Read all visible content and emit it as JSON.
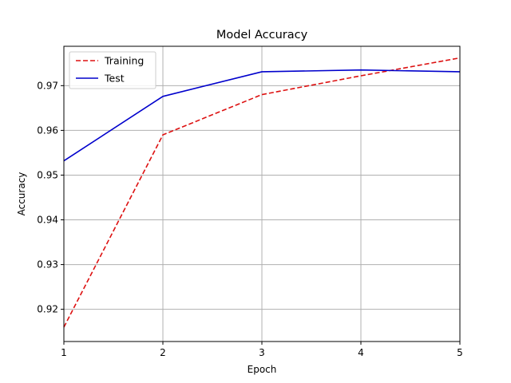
{
  "chart_data": {
    "type": "line",
    "title": "Model Accuracy",
    "xlabel": "Epoch",
    "ylabel": "Accuracy",
    "x": [
      1,
      2,
      3,
      4,
      5
    ],
    "xlim": [
      1,
      5
    ],
    "ylim": [
      0.9128,
      0.9788
    ],
    "xticks": [
      1,
      2,
      3,
      4,
      5
    ],
    "yticks": [
      0.92,
      0.93,
      0.94,
      0.95,
      0.96,
      0.97
    ],
    "xtick_labels": [
      "1",
      "2",
      "3",
      "4",
      "5"
    ],
    "ytick_labels": [
      "0.92",
      "0.93",
      "0.94",
      "0.95",
      "0.96",
      "0.97"
    ],
    "grid": true,
    "legend_position": "top-left",
    "series": [
      {
        "name": "Training",
        "values": [
          0.916,
          0.959,
          0.968,
          0.9722,
          0.9762
        ],
        "color": "#dd1111",
        "style": "dashed"
      },
      {
        "name": "Test",
        "values": [
          0.9532,
          0.9676,
          0.9731,
          0.9735,
          0.9731
        ],
        "color": "#0000cc",
        "style": "solid"
      }
    ]
  }
}
